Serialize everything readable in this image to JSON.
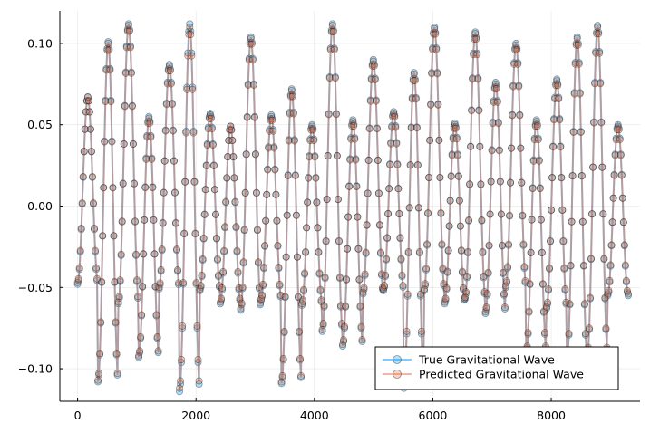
{
  "chart_data": {
    "type": "line",
    "title": "",
    "xlabel": "",
    "ylabel": "",
    "xlim": [
      -300,
      9500
    ],
    "ylim": [
      -0.12,
      0.12
    ],
    "x_ticks": [
      0,
      2000,
      4000,
      6000,
      8000
    ],
    "x_tick_labels": [
      "0",
      "2000",
      "4000",
      "6000",
      "8000"
    ],
    "y_ticks": [
      -0.1,
      -0.05,
      0.0,
      0.05,
      0.1
    ],
    "y_tick_labels": [
      "−0.10",
      "−0.05",
      "0.00",
      "0.05",
      "0.10"
    ],
    "grid": true,
    "legend_position": "bottom-right",
    "series": [
      {
        "name": "True Gravitational Wave",
        "color": "#009AFA",
        "marker": "circle",
        "x_range": [
          0,
          9300
        ],
        "cycles": 27,
        "peaks": [
          0.067,
          0.101,
          0.112,
          0.055,
          0.087,
          0.112,
          0.057,
          0.049,
          0.104,
          0.056,
          0.072,
          0.05,
          0.112,
          0.053,
          0.09,
          0.058,
          0.082,
          0.11,
          0.051,
          0.107,
          0.076,
          0.1,
          0.053,
          0.078,
          0.104,
          0.111,
          0.05
        ],
        "troughs": [
          -0.048,
          -0.108,
          -0.06,
          -0.093,
          -0.051,
          -0.114,
          -0.052,
          -0.06,
          -0.064,
          -0.058,
          -0.109,
          -0.061,
          -0.077,
          -0.086,
          -0.054,
          -0.052,
          -0.112,
          -0.052,
          -0.06,
          -0.057,
          -0.066,
          -0.05,
          -0.09,
          -0.063,
          -0.095,
          -0.092,
          -0.055
        ]
      },
      {
        "name": "Predicted Gravitational Wave",
        "color": "#E36F47",
        "marker": "circle",
        "x_range": [
          0,
          9300
        ],
        "cycles": 27,
        "peaks": [
          0.067,
          0.1,
          0.111,
          0.054,
          0.086,
          0.11,
          0.056,
          0.049,
          0.103,
          0.055,
          0.071,
          0.049,
          0.111,
          0.052,
          0.089,
          0.057,
          0.081,
          0.109,
          0.05,
          0.106,
          0.075,
          0.099,
          0.052,
          0.077,
          0.103,
          0.11,
          0.049
        ],
        "troughs": [
          -0.047,
          -0.107,
          -0.059,
          -0.092,
          -0.05,
          -0.112,
          -0.051,
          -0.059,
          -0.063,
          -0.057,
          -0.108,
          -0.06,
          -0.076,
          -0.085,
          -0.053,
          -0.051,
          -0.11,
          -0.051,
          -0.059,
          -0.056,
          -0.065,
          -0.049,
          -0.089,
          -0.062,
          -0.094,
          -0.091,
          -0.054
        ]
      }
    ]
  }
}
